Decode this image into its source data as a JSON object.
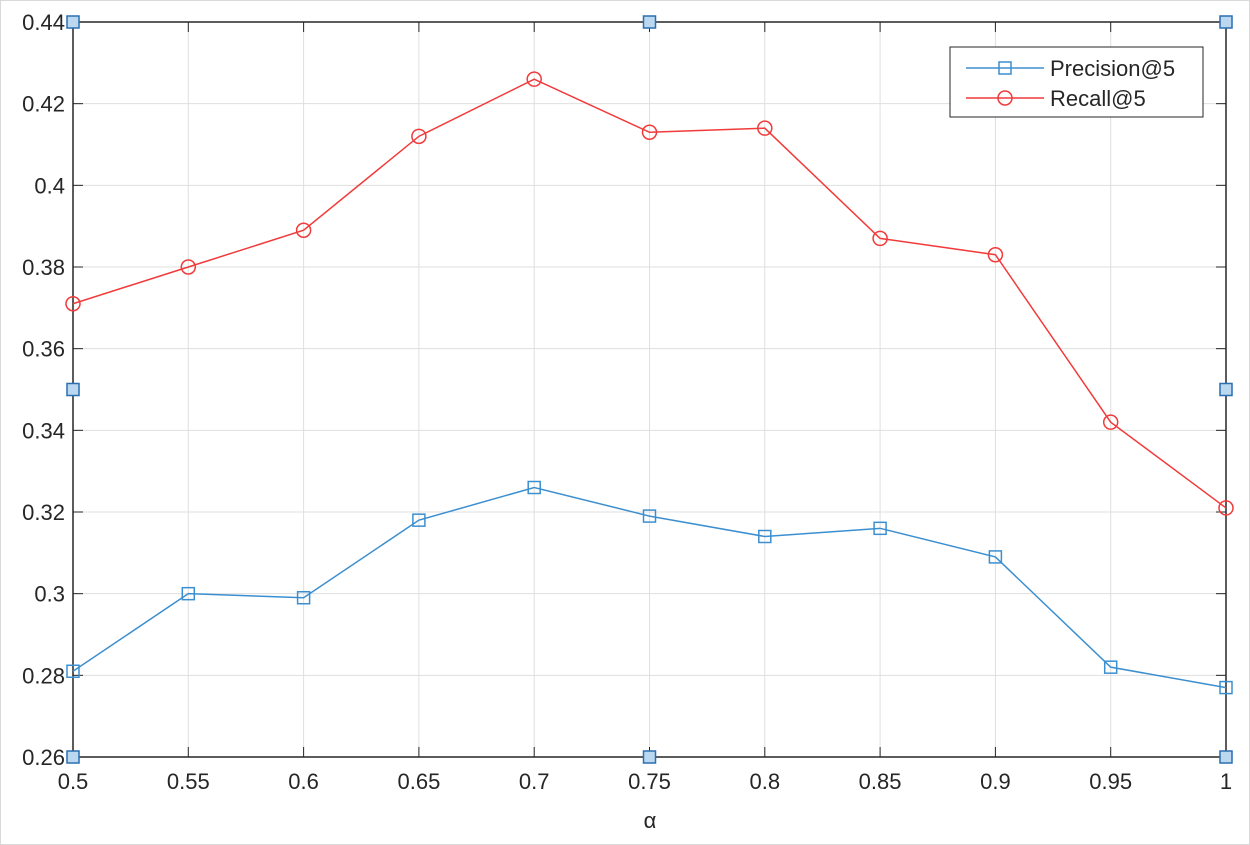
{
  "chart_data": {
    "type": "line",
    "xlabel": "α",
    "x": [
      0.5,
      0.55,
      0.6,
      0.65,
      0.7,
      0.75,
      0.8,
      0.85,
      0.9,
      0.95,
      1
    ],
    "series": [
      {
        "name": "Precision@5",
        "color": "#3b8fd0",
        "marker": "square",
        "values": [
          0.281,
          0.3,
          0.299,
          0.318,
          0.326,
          0.319,
          0.314,
          0.316,
          0.309,
          0.282,
          0.277
        ]
      },
      {
        "name": "Recall@5",
        "color": "#f23a3a",
        "marker": "circle",
        "values": [
          0.371,
          0.38,
          0.389,
          0.412,
          0.426,
          0.413,
          0.414,
          0.387,
          0.383,
          0.342,
          0.321
        ]
      }
    ],
    "xlim": [
      0.5,
      1
    ],
    "xticks": [
      0.5,
      0.55,
      0.6,
      0.65,
      0.7,
      0.75,
      0.8,
      0.85,
      0.9,
      0.95,
      1
    ],
    "ylim": [
      0.26,
      0.44
    ],
    "yticks": [
      0.26,
      0.28,
      0.3,
      0.32,
      0.34,
      0.36,
      0.38,
      0.4,
      0.42,
      0.44
    ],
    "grid": true,
    "legend": "top-right"
  }
}
